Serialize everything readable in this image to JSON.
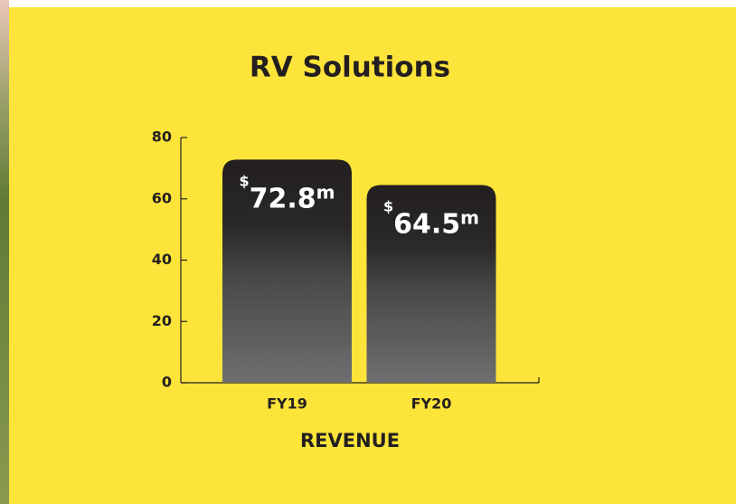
{
  "chart_data": {
    "type": "bar",
    "title": "RV Solutions",
    "x_label": "REVENUE",
    "categories": [
      "FY19",
      "FY20"
    ],
    "values": [
      72.8,
      64.5
    ],
    "value_labels": [
      "$72.8m",
      "$64.5m"
    ],
    "ylim": [
      0,
      80
    ],
    "yticks": [
      0,
      20,
      40,
      60,
      80
    ]
  }
}
